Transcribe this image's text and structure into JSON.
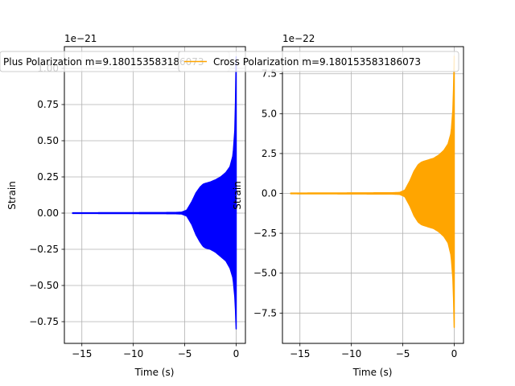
{
  "chart_data": [
    {
      "type": "line",
      "title": "",
      "xlabel": "Time (s)",
      "ylabel": "Strain",
      "offset_label": "1e−21",
      "xlim": [
        -16.7,
        0.9
      ],
      "ylim": [
        -0.9,
        1.15
      ],
      "grid": true,
      "legend_position": "top-right",
      "x_ticks": [
        -15,
        -10,
        -5,
        0
      ],
      "x_tick_labels": [
        "−15",
        "−10",
        "−5",
        "0"
      ],
      "y_ticks": [
        -0.75,
        -0.5,
        -0.25,
        0,
        0.25,
        0.5,
        0.75,
        1.0
      ],
      "y_tick_labels": [
        "−0.75",
        "−0.50",
        "−0.25",
        "0.00",
        "0.25",
        "0.50",
        "0.75",
        "1.00"
      ],
      "series": [
        {
          "name": "Plus Polarization m=9.180153583186073",
          "color": "#0000ff",
          "envelope": {
            "t": [
              -15.9,
              -10,
              -6,
              -5.3,
              -4.8,
              -4.3,
              -3.9,
              -3.5,
              -3.2,
              -3.0,
              -2.5,
              -2.0,
              -1.5,
              -1.0,
              -0.6,
              -0.3,
              -0.1,
              0.0
            ],
            "upper": [
              0.002,
              0.003,
              0.004,
              0.006,
              0.02,
              0.08,
              0.14,
              0.18,
              0.2,
              0.205,
              0.215,
              0.23,
              0.25,
              0.28,
              0.32,
              0.4,
              0.6,
              1.08
            ],
            "lower": [
              -0.002,
              -0.003,
              -0.004,
              -0.006,
              -0.02,
              -0.08,
              -0.15,
              -0.2,
              -0.23,
              -0.24,
              -0.25,
              -0.27,
              -0.3,
              -0.33,
              -0.38,
              -0.45,
              -0.6,
              -0.8
            ]
          }
        }
      ]
    },
    {
      "type": "line",
      "title": "",
      "xlabel": "Time (s)",
      "ylabel": "Strain",
      "offset_label": "1e−22",
      "xlim": [
        -16.7,
        0.9
      ],
      "ylim": [
        -9.4,
        9.2
      ],
      "grid": true,
      "legend_position": "top-center",
      "x_ticks": [
        -15,
        -10,
        -5,
        0
      ],
      "x_tick_labels": [
        "−15",
        "−10",
        "−5",
        "0"
      ],
      "y_ticks": [
        -7.5,
        -5.0,
        -2.5,
        0,
        2.5,
        5.0,
        7.5
      ],
      "y_tick_labels": [
        "−7.5",
        "−5.0",
        "−2.5",
        "0.0",
        "2.5",
        "5.0",
        "7.5"
      ],
      "series": [
        {
          "name": "Cross Polarization m=9.180153583186073",
          "color": "#ffa500",
          "envelope": {
            "t": [
              -15.9,
              -10,
              -6,
              -5.3,
              -4.8,
              -4.3,
              -3.9,
              -3.5,
              -3.2,
              -3.0,
              -2.5,
              -2.0,
              -1.5,
              -1.0,
              -0.6,
              -0.3,
              -0.1,
              0.0
            ],
            "upper": [
              0.02,
              0.03,
              0.04,
              0.06,
              0.2,
              0.8,
              1.4,
              1.8,
              1.95,
              2.0,
              2.1,
              2.2,
              2.4,
              2.7,
              3.1,
              3.8,
              5.5,
              8.6
            ],
            "lower": [
              -0.02,
              -0.03,
              -0.04,
              -0.06,
              -0.2,
              -0.8,
              -1.4,
              -1.8,
              -1.95,
              -2.0,
              -2.1,
              -2.2,
              -2.4,
              -2.7,
              -3.1,
              -3.9,
              -5.6,
              -8.4
            ]
          }
        }
      ]
    }
  ]
}
